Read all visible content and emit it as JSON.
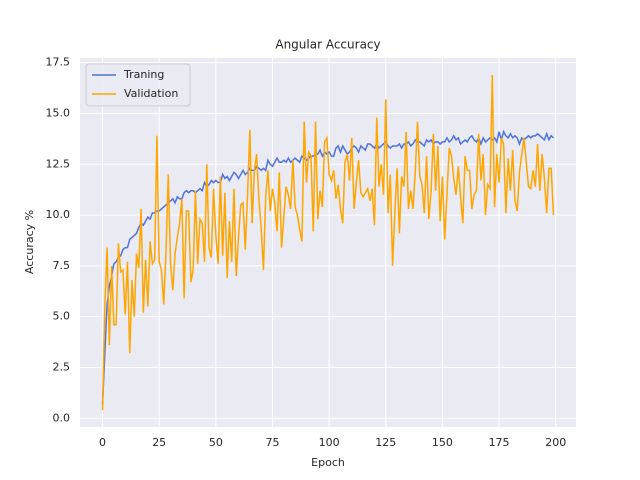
{
  "chart_data": {
    "type": "line",
    "title": "Angular Accuracy",
    "xlabel": "Epoch",
    "ylabel": "Accuracy %",
    "x": [
      0,
      1,
      2,
      3,
      4,
      5,
      6,
      7,
      8,
      9,
      10,
      11,
      12,
      13,
      14,
      15,
      16,
      17,
      18,
      19,
      20,
      21,
      22,
      23,
      24,
      25,
      26,
      27,
      28,
      29,
      30,
      31,
      32,
      33,
      34,
      35,
      36,
      37,
      38,
      39,
      40,
      41,
      42,
      43,
      44,
      45,
      46,
      47,
      48,
      49,
      50,
      51,
      52,
      53,
      54,
      55,
      56,
      57,
      58,
      59,
      60,
      61,
      62,
      63,
      64,
      65,
      66,
      67,
      68,
      69,
      70,
      71,
      72,
      73,
      74,
      75,
      76,
      77,
      78,
      79,
      80,
      81,
      82,
      83,
      84,
      85,
      86,
      87,
      88,
      89,
      90,
      91,
      92,
      93,
      94,
      95,
      96,
      97,
      98,
      99,
      100,
      101,
      102,
      103,
      104,
      105,
      106,
      107,
      108,
      109,
      110,
      111,
      112,
      113,
      114,
      115,
      116,
      117,
      118,
      119,
      120,
      121,
      122,
      123,
      124,
      125,
      126,
      127,
      128,
      129,
      130,
      131,
      132,
      133,
      134,
      135,
      136,
      137,
      138,
      139,
      140,
      141,
      142,
      143,
      144,
      145,
      146,
      147,
      148,
      149,
      150,
      151,
      152,
      153,
      154,
      155,
      156,
      157,
      158,
      159,
      160,
      161,
      162,
      163,
      164,
      165,
      166,
      167,
      168,
      169,
      170,
      171,
      172,
      173,
      174,
      175,
      176,
      177,
      178,
      179,
      180,
      181,
      182,
      183,
      184,
      185,
      186,
      187,
      188,
      189,
      190,
      191,
      192,
      193,
      194,
      195,
      196,
      197,
      198,
      199
    ],
    "series": [
      {
        "name": "Traning",
        "color": "#4c72e0",
        "values": [
          0.7,
          3.2,
          5.6,
          6.5,
          7.0,
          7.6,
          7.7,
          7.9,
          8.0,
          8.3,
          8.4,
          8.4,
          8.8,
          8.9,
          9.0,
          9.1,
          9.4,
          9.6,
          9.5,
          9.7,
          9.9,
          9.8,
          10.1,
          10.1,
          10.2,
          10.2,
          10.3,
          10.4,
          10.5,
          10.6,
          10.7,
          10.8,
          10.6,
          10.9,
          10.8,
          10.8,
          11.1,
          11.2,
          11.1,
          11.2,
          11.2,
          11.1,
          11.2,
          11.3,
          11.2,
          11.6,
          11.4,
          11.5,
          11.7,
          11.6,
          11.7,
          11.6,
          11.6,
          12.0,
          11.8,
          11.9,
          11.7,
          11.9,
          12.1,
          12.0,
          11.8,
          12.0,
          12.2,
          12.0,
          12.1,
          12.3,
          12.2,
          12.2,
          12.4,
          12.3,
          12.2,
          12.3,
          12.2,
          12.7,
          12.5,
          12.4,
          12.6,
          12.8,
          12.6,
          12.6,
          12.7,
          12.6,
          12.8,
          12.6,
          12.7,
          12.8,
          12.7,
          12.6,
          12.9,
          12.8,
          12.7,
          12.8,
          12.9,
          12.9,
          13.0,
          13.0,
          13.2,
          12.9,
          13.1,
          13.0,
          13.1,
          12.9,
          12.9,
          13.3,
          13.4,
          13.1,
          13.4,
          13.2,
          13.0,
          13.1,
          13.3,
          13.4,
          13.3,
          13.1,
          13.4,
          13.3,
          13.2,
          13.5,
          13.5,
          13.4,
          13.3,
          13.5,
          13.3,
          13.4,
          13.5,
          13.6,
          13.4,
          13.3,
          13.4,
          13.4,
          13.4,
          13.5,
          13.3,
          13.5,
          13.5,
          13.6,
          13.4,
          13.5,
          13.7,
          13.6,
          13.6,
          13.5,
          13.4,
          13.7,
          13.6,
          13.7,
          13.5,
          13.6,
          13.6,
          13.5,
          13.6,
          13.6,
          13.8,
          13.6,
          13.7,
          13.9,
          13.7,
          13.8,
          13.5,
          13.6,
          13.7,
          13.6,
          13.8,
          13.9,
          13.7,
          13.6,
          13.8,
          13.5,
          13.8,
          13.6,
          13.7,
          13.8,
          13.7,
          13.8,
          13.6,
          14.1,
          13.7,
          14.1,
          13.9,
          13.8,
          14.0,
          13.8,
          13.9,
          13.8,
          13.5,
          13.8,
          13.7,
          13.8,
          13.9,
          13.8,
          13.9,
          13.9,
          14.0,
          13.9,
          13.8,
          13.7,
          14.0,
          13.7,
          13.9,
          13.8
        ]
      },
      {
        "name": "Validation",
        "color": "#ffa500",
        "values": [
          0.4,
          5.5,
          8.4,
          3.6,
          7.5,
          4.6,
          4.6,
          8.6,
          7.2,
          7.3,
          5.1,
          7.7,
          3.2,
          6.8,
          5.0,
          8.1,
          7.4,
          10.3,
          5.2,
          7.8,
          5.5,
          8.7,
          7.6,
          7.8,
          13.9,
          7.7,
          7.3,
          5.6,
          8.2,
          12.0,
          7.6,
          6.3,
          8.1,
          8.9,
          9.6,
          10.8,
          5.9,
          10.2,
          10.2,
          6.7,
          7.3,
          11.2,
          7.6,
          9.8,
          9.6,
          7.7,
          12.5,
          8.4,
          7.9,
          11.3,
          9.0,
          7.6,
          11.9,
          8.0,
          11.1,
          6.9,
          9.7,
          7.7,
          11.3,
          7.0,
          8.9,
          10.5,
          10.6,
          8.3,
          11.0,
          14.2,
          9.6,
          12.2,
          13.0,
          10.8,
          9.4,
          7.3,
          10.9,
          12.2,
          10.2,
          11.3,
          10.6,
          9.2,
          12.1,
          8.4,
          9.9,
          11.4,
          11.0,
          10.3,
          12.7,
          10.4,
          10.0,
          9.3,
          8.7,
          14.6,
          11.6,
          13.1,
          12.9,
          9.2,
          14.6,
          9.8,
          11.2,
          10.4,
          13.6,
          13.8,
          12.0,
          11.7,
          12.2,
          10.8,
          11.5,
          10.3,
          9.6,
          12.6,
          13.0,
          11.7,
          13.8,
          10.3,
          11.6,
          12.7,
          11.1,
          10.9,
          11.1,
          11.3,
          10.7,
          11.3,
          9.5,
          14.8,
          11.4,
          12.5,
          11.0,
          15.7,
          10.1,
          12.0,
          7.5,
          10.1,
          12.3,
          9.1,
          11.9,
          11.4,
          14.1,
          10.3,
          11.2,
          10.3,
          12.1,
          14.6,
          11.9,
          11.5,
          10.1,
          12.9,
          9.8,
          11.2,
          14.0,
          11.2,
          13.4,
          9.7,
          11.9,
          8.8,
          11.0,
          13.3,
          12.9,
          11.8,
          11.0,
          12.4,
          10.9,
          9.6,
          12.9,
          12.2,
          12.2,
          10.3,
          11.0,
          11.2,
          14.0,
          11.7,
          13.0,
          10.0,
          11.5,
          11.3,
          16.9,
          10.4,
          13.0,
          11.6,
          13.8,
          13.5,
          10.1,
          12.8,
          11.2,
          13.2,
          10.7,
          10.2,
          12.1,
          13.0,
          13.8,
          12.6,
          11.4,
          11.3,
          12.2,
          11.4,
          13.5,
          11.2,
          13.0,
          11.8,
          10.1,
          12.3,
          12.3,
          10.0
        ]
      }
    ],
    "xlim": [
      -9.95,
      208.95
    ],
    "ylim": [
      -0.43,
      17.73
    ],
    "xticks": [
      0,
      25,
      50,
      75,
      100,
      125,
      150,
      175,
      200
    ],
    "yticks": [
      {
        "value": 0,
        "label": "0.0"
      },
      2.5,
      {
        "value": 5,
        "label": "5.0"
      },
      7.5,
      {
        "value": 10,
        "label": "10.0"
      },
      12.5,
      {
        "value": 15,
        "label": "15.0"
      },
      17.5
    ],
    "grid": true,
    "legend": "upper-left"
  }
}
